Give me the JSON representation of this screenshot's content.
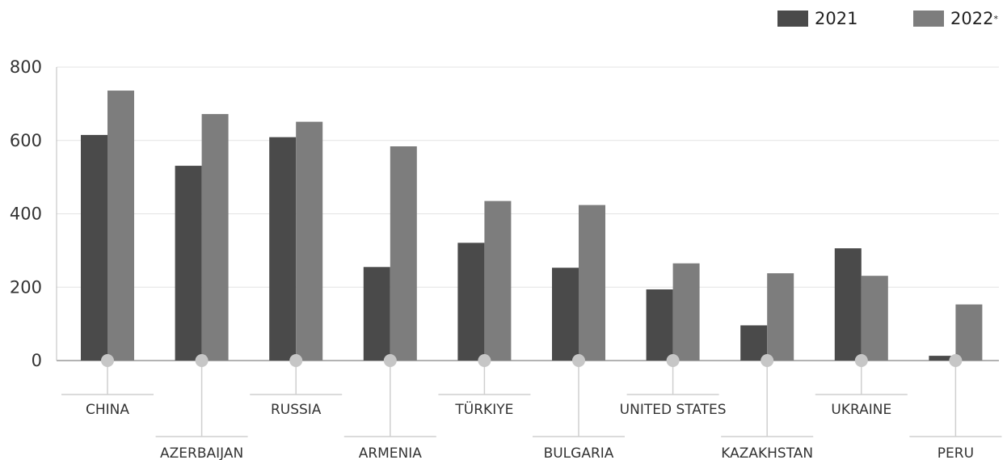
{
  "chart_data": {
    "type": "bar",
    "categories": [
      "CHINA",
      "AZERBAIJAN",
      "RUSSIA",
      "ARMENIA",
      "TÜRKIYE",
      "BULGARIA",
      "UNITED STATES",
      "KAZAKHSTAN",
      "UKRAINE",
      "PERU"
    ],
    "series": [
      {
        "name": "2021",
        "color": "#4a4a4a",
        "values": [
          615,
          531,
          609,
          255,
          321,
          253,
          194,
          96,
          306,
          13
        ]
      },
      {
        "name": "2022",
        "name_superscript": "*",
        "color": "#7d7d7d",
        "values": [
          736,
          672,
          651,
          584,
          435,
          424,
          265,
          238,
          231,
          153
        ]
      }
    ],
    "title": "",
    "xlabel": "",
    "ylabel": "",
    "ylim": [
      0,
      800
    ],
    "yticks": [
      0,
      200,
      400,
      600,
      800
    ],
    "grid": true,
    "legend_position": "top-right"
  }
}
